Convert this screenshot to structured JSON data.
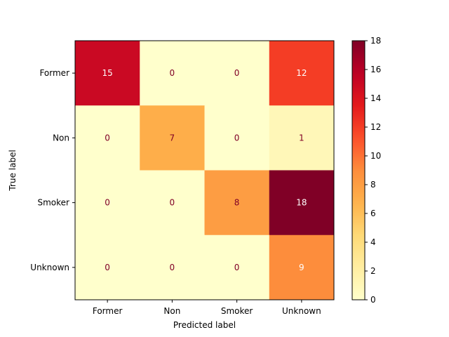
{
  "chart_data": {
    "type": "heatmap",
    "title": "",
    "xlabel": "Predicted label",
    "ylabel": "True label",
    "x_categories": [
      "Former",
      "Non",
      "Smoker",
      "Unknown"
    ],
    "y_categories": [
      "Former",
      "Non",
      "Smoker",
      "Unknown"
    ],
    "values": [
      [
        15,
        0,
        0,
        12
      ],
      [
        0,
        7,
        0,
        1
      ],
      [
        0,
        0,
        8,
        18
      ],
      [
        0,
        0,
        0,
        9
      ]
    ],
    "colorbar": {
      "range": [
        0,
        18
      ],
      "ticks": [
        0,
        2,
        4,
        6,
        8,
        10,
        12,
        14,
        16,
        18
      ],
      "colormap": "YlOrRd"
    },
    "grid": false
  }
}
